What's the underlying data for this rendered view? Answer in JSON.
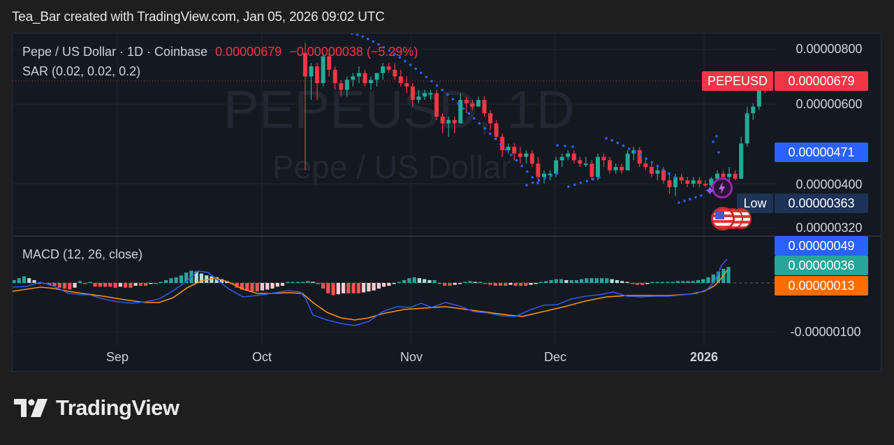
{
  "header": {
    "credit": "Tea_Bar created with TradingView.com, Jan 05, 2026 09:02 UTC"
  },
  "legend": {
    "symbol_line": "Pepe / US Dollar · 1D · Coinbase",
    "last_price": "0.00000679",
    "change": "−0.00000038 (−5.29%)",
    "sar": "SAR (0.02, 0.02, 0.2)",
    "macd": "MACD (12, 26, close)"
  },
  "watermark": {
    "symbol": "PEPEUSD, 1D",
    "name": "Pepe / US Dollar"
  },
  "price_axis": {
    "ticks": [
      "0.00000800",
      "0.00000600",
      "0.00000400",
      "0.00000320"
    ],
    "tags": {
      "symbol_label": "PEPEUSD",
      "last_price": "0.00000679",
      "sar_value": "0.00000471",
      "low_label": "Low",
      "low_value": "0.00000363"
    }
  },
  "macd_axis": {
    "ticks": [
      "-0.00000100"
    ],
    "tags": {
      "macd_value": "0.00000049",
      "histogram_value": "0.00000036",
      "signal_value": "0.00000013"
    }
  },
  "time_axis": {
    "labels": [
      "Sep",
      "Oct",
      "Nov",
      "Dec",
      "2026"
    ]
  },
  "branding": {
    "name": "TradingView"
  },
  "colors": {
    "up": "#22ab94",
    "down": "#f23645",
    "sar": "#2962ff",
    "macd_line": "#2962ff",
    "signal_line": "#ff6d00",
    "hist_up_strong": "#26a69a",
    "hist_up_weak": "#b2dfdb",
    "hist_down_strong": "#ff5252",
    "hist_down_weak": "#ffcdd2"
  },
  "chart_data": [
    {
      "type": "candlestick",
      "title": "Pepe / US Dollar · 1D · Coinbase",
      "x_labels": [
        "Sep",
        "Oct",
        "Nov",
        "Dec",
        "2026"
      ],
      "y_ticks": [
        8e-06,
        6e-06,
        4e-06,
        3.2e-06
      ],
      "ylim": [
        3e-06,
        8.3e-06
      ],
      "last_price": 6.79e-06,
      "change": -3.8e-07,
      "change_pct": -5.29,
      "period_low": 3.63e-06,
      "sar_current": 4.71e-06,
      "approx_closes": {
        "Oct 10": 7.4e-06,
        "Oct 15": 7.1e-06,
        "Oct 25": 7.3e-06,
        "Nov 1": 6.6e-06,
        "Nov 5": 5.7e-06,
        "Nov 10": 6.1e-06,
        "Nov 15": 4.8e-06,
        "Nov 20": 4.3e-06,
        "Nov 25": 4.5e-06,
        "Dec 1": 4.2e-06,
        "Dec 8": 4.6e-06,
        "Dec 15": 4.2e-06,
        "Dec 20": 3.8e-06,
        "Dec 28": 4.1e-06,
        "Jan 1": 4.1e-06,
        "Jan 2": 5.1e-06,
        "Jan 3": 6.2e-06,
        "Jan 4": 7.1e-06,
        "Jan 5": 6.8e-06
      },
      "indicator": "SAR (0.02, 0.02, 0.2)"
    },
    {
      "type": "line+histogram",
      "title": "MACD (12, 26, close)",
      "series": [
        {
          "name": "MACD",
          "current": 4.9e-07
        },
        {
          "name": "Histogram",
          "current": 3.6e-07
        },
        {
          "name": "Signal",
          "current": 1.3e-07
        }
      ],
      "y_ticks": [
        -1e-06
      ],
      "x_labels": [
        "Sep",
        "Oct",
        "Nov",
        "Dec",
        "2026"
      ]
    }
  ]
}
